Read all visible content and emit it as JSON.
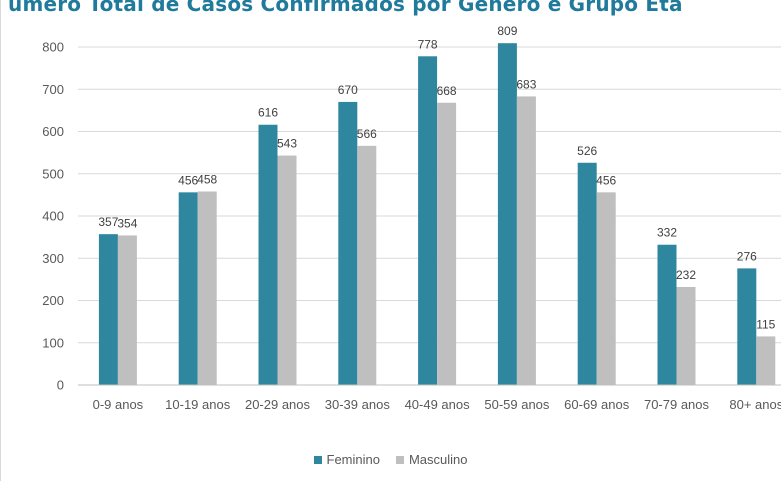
{
  "colors": {
    "title": "#1f7a9c",
    "feminino": "#2e879e",
    "masculino": "#bfbfbf",
    "grid": "#d9d9d9",
    "axis": "#bfbfbf"
  },
  "chart_data": {
    "type": "bar",
    "title": "úmero Total de Casos Confirmados por Género e Grupo Etá",
    "xlabel": "",
    "ylabel": "",
    "ylim": [
      0,
      800
    ],
    "yticks": [
      0,
      100,
      200,
      300,
      400,
      500,
      600,
      700,
      800
    ],
    "grid": true,
    "legend_position": "bottom",
    "categories": [
      "0-9 anos",
      "10-19 anos",
      "20-29 anos",
      "30-39 anos",
      "40-49 anos",
      "50-59 anos",
      "60-69 anos",
      "70-79 anos",
      "80+ anos"
    ],
    "series": [
      {
        "name": "Feminino",
        "values": [
          357,
          456,
          616,
          670,
          778,
          809,
          526,
          332,
          276
        ]
      },
      {
        "name": "Masculino",
        "values": [
          354,
          458,
          543,
          566,
          668,
          683,
          456,
          232,
          115
        ]
      }
    ]
  }
}
